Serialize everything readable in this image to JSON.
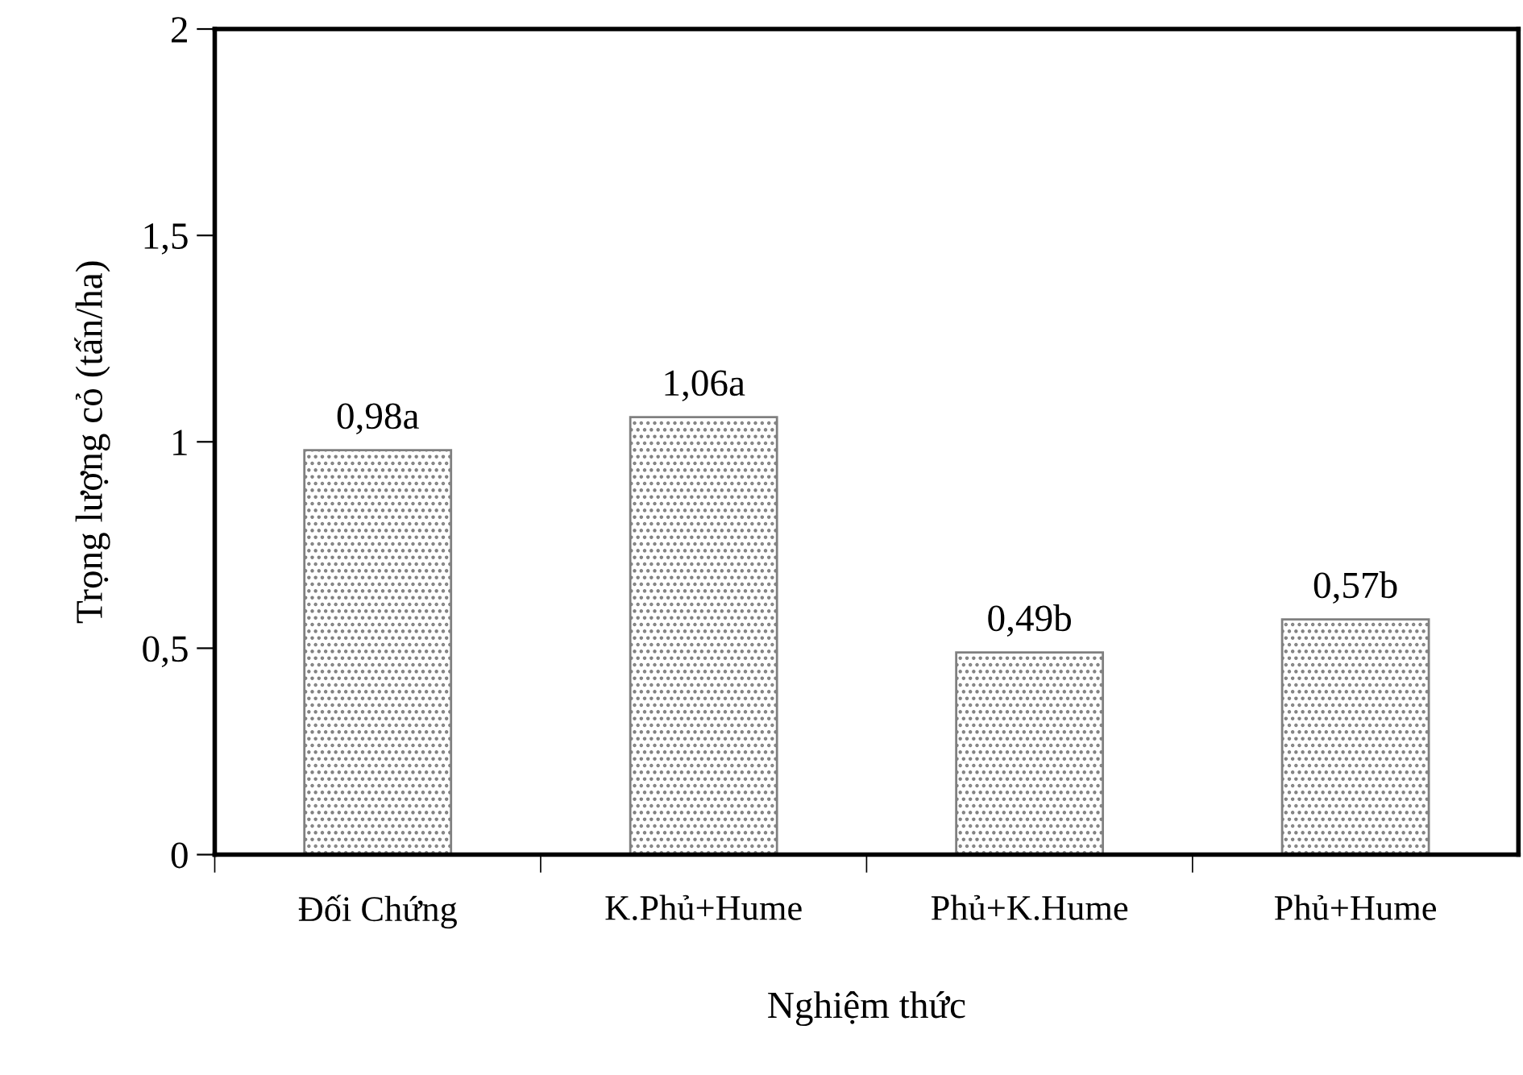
{
  "chart_data": {
    "type": "bar",
    "xlabel": "Nghiệm thức",
    "ylabel": "Trọng lượng cỏ (tấn/ha)",
    "categories": [
      "Đối Chứng",
      "K.Phủ+Hume",
      "Phủ+K.Hume",
      "Phủ+Hume"
    ],
    "values": [
      0.98,
      1.06,
      0.49,
      0.57
    ],
    "value_labels": [
      "0,98a",
      "1,06a",
      "0,49b",
      "0,57b"
    ],
    "color": "#808080",
    "ylim": [
      0,
      2
    ],
    "yticks": [
      0,
      {
        "value": 0.5,
        "label": "0,5"
      },
      1,
      {
        "value": 1.5,
        "label": "1,5"
      },
      2
    ],
    "grid": false,
    "legend": false
  }
}
